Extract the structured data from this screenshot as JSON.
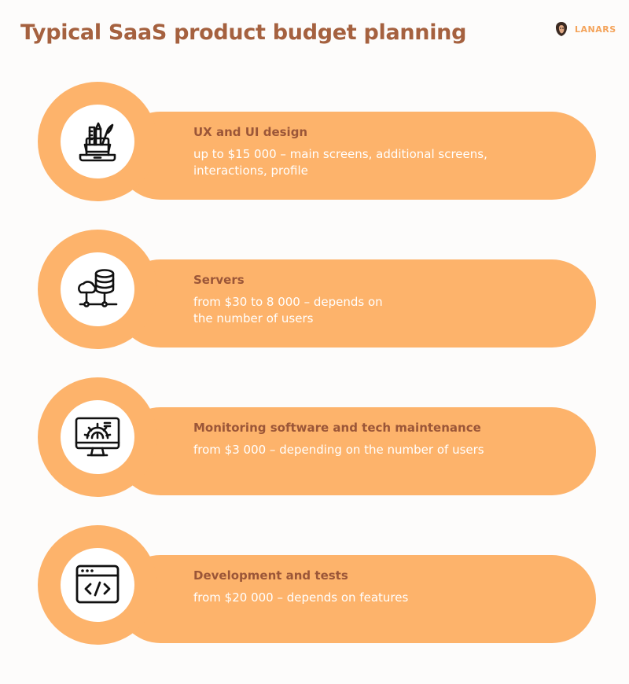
{
  "title": "Typical SaaS product budget planning",
  "logo": {
    "text": "LANARS",
    "icon": "lion-head-icon",
    "color": "#f4a35a"
  },
  "colors": {
    "accent": "#fdb36b",
    "title": "#a5613f",
    "item_title": "#9b5638",
    "description": "#ffffff",
    "background": "#fdfcfb"
  },
  "items": [
    {
      "icon": "design-tools-laptop-icon",
      "title": "UX and UI design",
      "description_lines": [
        "up to $15 000 – main screens, additional screens,",
        "interactions, profile"
      ]
    },
    {
      "icon": "database-server-cloud-icon",
      "title": "Servers",
      "description_lines": [
        "from $30 to 8 000 – depends on",
        "the number of users"
      ]
    },
    {
      "icon": "monitor-gear-icon",
      "title": "Monitoring software and tech maintenance",
      "description_lines": [
        "from $3 000 – depending on the number of users"
      ]
    },
    {
      "icon": "browser-code-icon",
      "title": "Development and tests",
      "description_lines": [
        "from $20 000 – depends on features"
      ]
    }
  ]
}
